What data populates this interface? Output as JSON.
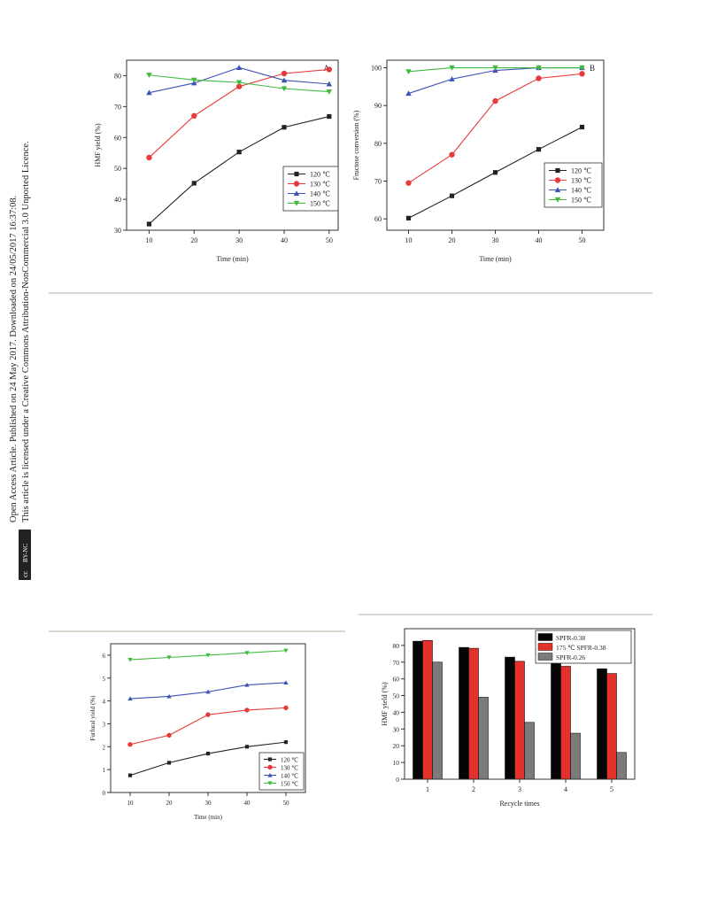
{
  "sidebar": {
    "line1": "Open Access Article. Published on 24 May 2017. Downloaded on 24/05/2017 16:37:08.",
    "line2": "This article is licensed under a Creative Commons Attribution-NonCommercial 3.0 Unported Licence.",
    "badge_cc": "cc",
    "badge_text": "BY-NC"
  },
  "chart_data": [
    {
      "type": "line",
      "panel_label": "A",
      "xlabel": "Time (min)",
      "ylabel": "HMF yield (%)",
      "x": [
        10,
        20,
        30,
        40,
        50
      ],
      "xticks": [
        "10",
        "20",
        "30",
        "40",
        "50"
      ],
      "xlim": [
        5,
        52
      ],
      "ylim": [
        30,
        85
      ],
      "yticks": [
        30,
        40,
        50,
        60,
        70,
        80
      ],
      "legend_position": "lower-right",
      "series": [
        {
          "name": "120 ℃",
          "values": [
            32,
            45.2,
            55.3,
            63.3,
            66.8
          ],
          "color": "#222222",
          "marker": "square"
        },
        {
          "name": "130 ℃",
          "values": [
            53.5,
            67,
            76.5,
            80.7,
            82
          ],
          "color": "#e83a3a",
          "marker": "circle"
        },
        {
          "name": "140 ℃",
          "values": [
            74.5,
            77.6,
            82.6,
            78.5,
            77.3
          ],
          "color": "#3c52b4",
          "marker": "triangle-up"
        },
        {
          "name": "150 ℃",
          "values": [
            80.2,
            78.6,
            77.8,
            75.8,
            74.8
          ],
          "color": "#3ebb3e",
          "marker": "triangle-down"
        }
      ]
    },
    {
      "type": "line",
      "panel_label": "B",
      "xlabel": "Time (min)",
      "ylabel": "Fructose conversion (%)",
      "x": [
        10,
        20,
        30,
        40,
        50
      ],
      "xticks": [
        "10",
        "20",
        "30",
        "40",
        "50"
      ],
      "xlim": [
        5,
        55
      ],
      "ylim": [
        57,
        102
      ],
      "yticks": [
        60,
        70,
        80,
        90,
        100
      ],
      "legend_position": "lower-right",
      "series": [
        {
          "name": "120 ℃",
          "values": [
            60.2,
            66.1,
            72.3,
            78.4,
            84.3
          ],
          "color": "#222222",
          "marker": "square"
        },
        {
          "name": "130 ℃",
          "values": [
            69.5,
            77,
            91.2,
            97.2,
            98.4
          ],
          "color": "#e83a3a",
          "marker": "circle"
        },
        {
          "name": "140 ℃",
          "values": [
            93.2,
            97,
            99.3,
            100,
            100
          ],
          "color": "#3c52b4",
          "marker": "triangle-up"
        },
        {
          "name": "150 ℃",
          "values": [
            99,
            100,
            100,
            100,
            100
          ],
          "color": "#3ebb3e",
          "marker": "triangle-down"
        }
      ]
    },
    {
      "type": "line",
      "xlabel": "Time (min)",
      "ylabel": "Furfural yield (%)",
      "x": [
        10,
        20,
        30,
        40,
        50
      ],
      "xticks": [
        "10",
        "20",
        "30",
        "40",
        "50"
      ],
      "xlim": [
        5,
        55
      ],
      "ylim": [
        0,
        6.5
      ],
      "yticks": [
        0,
        1,
        2,
        3,
        4,
        5,
        6
      ],
      "legend_position": "lower-right",
      "series": [
        {
          "name": "120 ℃",
          "values": [
            0.75,
            1.3,
            1.7,
            2.0,
            2.2
          ],
          "color": "#222222",
          "marker": "square"
        },
        {
          "name": "130 ℃",
          "values": [
            2.1,
            2.5,
            3.4,
            3.6,
            3.7
          ],
          "color": "#e83a3a",
          "marker": "circle"
        },
        {
          "name": "140 ℃",
          "values": [
            4.1,
            4.2,
            4.4,
            4.7,
            4.8
          ],
          "color": "#3c52b4",
          "marker": "triangle-up"
        },
        {
          "name": "150 ℃",
          "values": [
            5.8,
            5.9,
            6.0,
            6.1,
            6.2
          ],
          "color": "#3ebb3e",
          "marker": "triangle-down"
        }
      ]
    },
    {
      "type": "bar",
      "xlabel": "Recycle times",
      "ylabel": "HMF yield (%)",
      "categories": [
        "1",
        "2",
        "3",
        "4",
        "5"
      ],
      "ylim": [
        0,
        90
      ],
      "yticks": [
        0,
        10,
        20,
        30,
        40,
        50,
        60,
        70,
        80
      ],
      "legend_position": "top-right",
      "series": [
        {
          "name": "SPFR-0.38",
          "values": [
            82.5,
            78.8,
            73,
            69.5,
            66
          ],
          "color": "#050505"
        },
        {
          "name": "175 ℃ SPFR-0.38",
          "values": [
            83,
            78.3,
            70.5,
            67.5,
            63.2
          ],
          "color": "#e3322b"
        },
        {
          "name": "SPFR-0.26",
          "values": [
            70,
            49,
            34,
            27.5,
            16
          ],
          "color": "#7b7b7b"
        }
      ]
    }
  ]
}
